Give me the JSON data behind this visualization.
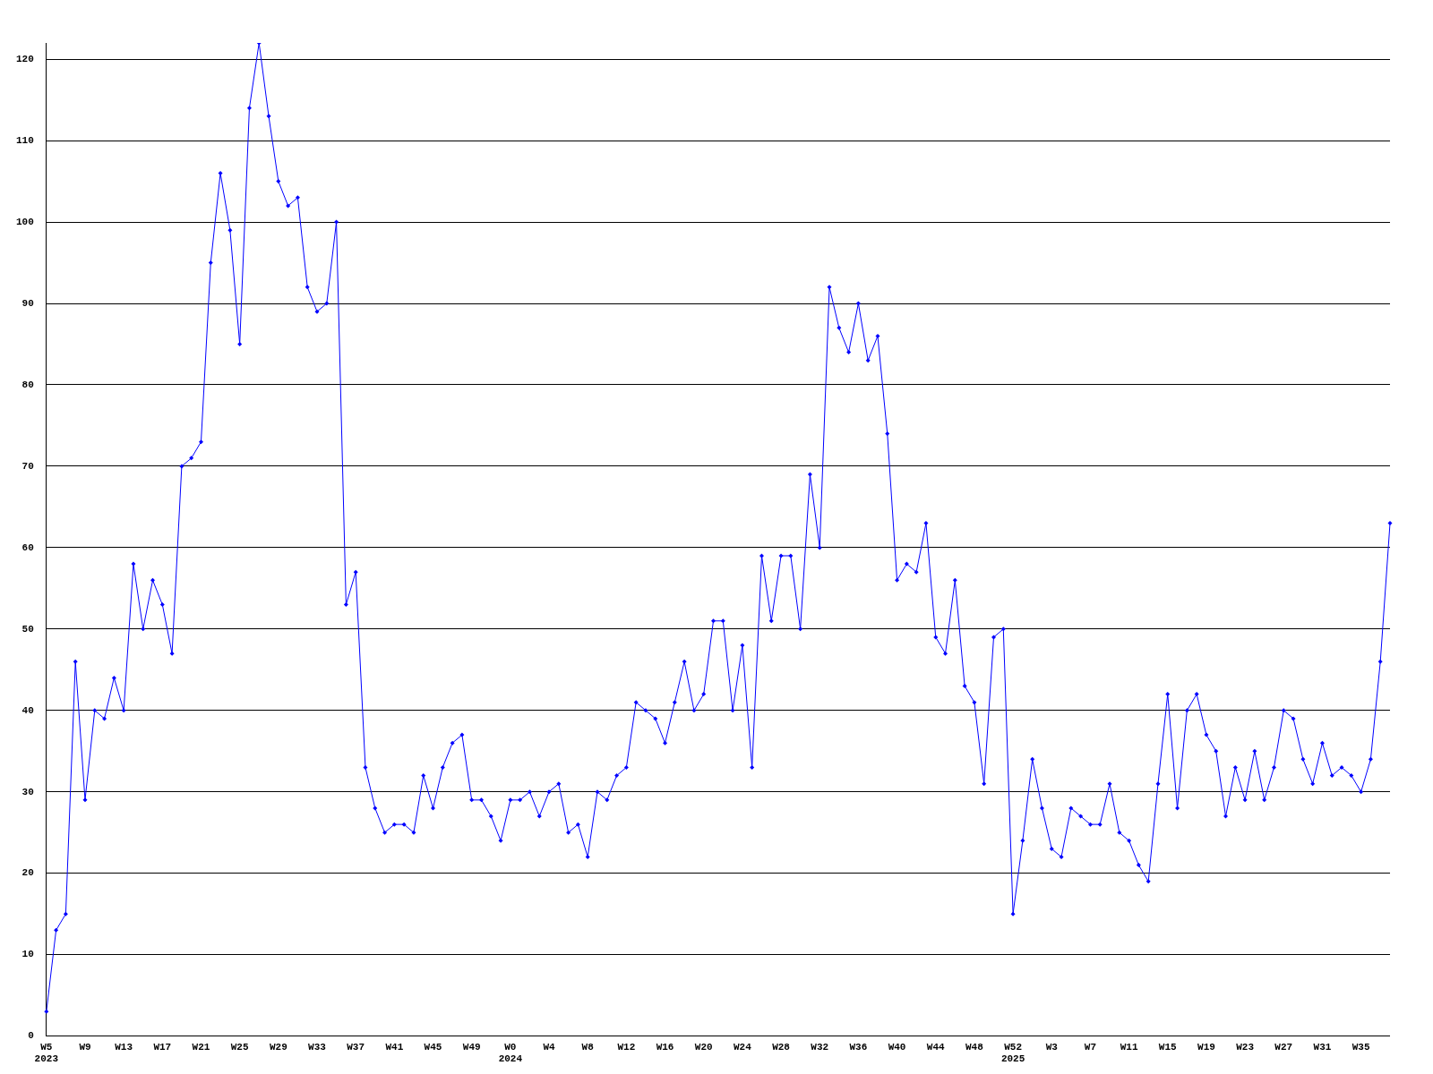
{
  "chart_data": {
    "type": "line",
    "categories": [
      "W5\n2023",
      null,
      null,
      null,
      "W9",
      null,
      null,
      null,
      "W13",
      null,
      null,
      null,
      "W17",
      null,
      null,
      null,
      "W21",
      null,
      null,
      null,
      "W25",
      null,
      null,
      null,
      "W29",
      null,
      null,
      null,
      "W33",
      null,
      null,
      null,
      "W37",
      null,
      null,
      null,
      "W41",
      null,
      null,
      null,
      "W45",
      null,
      null,
      null,
      "W49",
      null,
      null,
      null,
      "W0\n2024",
      null,
      null,
      null,
      "W4",
      null,
      null,
      null,
      "W8",
      null,
      null,
      null,
      "W12",
      null,
      null,
      null,
      "W16",
      null,
      null,
      null,
      "W20",
      null,
      null,
      null,
      "W24",
      null,
      null,
      null,
      "W28",
      null,
      null,
      null,
      "W32",
      null,
      null,
      null,
      "W36",
      null,
      null,
      null,
      "W40",
      null,
      null,
      null,
      "W44",
      null,
      null,
      null,
      "W48",
      null,
      null,
      null,
      "W52\n2025",
      null,
      null,
      null,
      "W3",
      null,
      null,
      null,
      "W7",
      null,
      null,
      null,
      "W11",
      null,
      null,
      null,
      "W15",
      null,
      null,
      null,
      "W19",
      null,
      null,
      null,
      "W23",
      null,
      null,
      null,
      "W27",
      null,
      null,
      null,
      "W31",
      null,
      null,
      null,
      "W35",
      null,
      null,
      null
    ],
    "series": [
      {
        "color": "#0000ff",
        "values": [
          3,
          13,
          15,
          46,
          29,
          40,
          39,
          44,
          40,
          58,
          50,
          56,
          53,
          47,
          70,
          71,
          73,
          95,
          106,
          99,
          85,
          114,
          122,
          113,
          105,
          102,
          103,
          92,
          89,
          90,
          100,
          53,
          57,
          33,
          28,
          25,
          26,
          26,
          25,
          32,
          28,
          33,
          36,
          37,
          29,
          29,
          27,
          24,
          29,
          29,
          30,
          27,
          30,
          31,
          25,
          26,
          22,
          30,
          29,
          32,
          33,
          41,
          40,
          39,
          36,
          41,
          46,
          40,
          42,
          51,
          51,
          40,
          48,
          33,
          59,
          51,
          59,
          59,
          50,
          69,
          60,
          92,
          87,
          84,
          90,
          83,
          86,
          74,
          56,
          58,
          57,
          63,
          49,
          47,
          56,
          43,
          41,
          31,
          49,
          50,
          15,
          24,
          34,
          28,
          23,
          22,
          28,
          27,
          26,
          26,
          31,
          25,
          24,
          21,
          19,
          31,
          42,
          28,
          40,
          42,
          37,
          35,
          27,
          33,
          29,
          35,
          29,
          33,
          40,
          39,
          34,
          31,
          36,
          32,
          33,
          32,
          30,
          34,
          46,
          63
        ]
      }
    ],
    "ylim": [
      0,
      122
    ],
    "yticks": [
      0,
      10,
      20,
      30,
      40,
      50,
      60,
      70,
      80,
      90,
      100,
      110,
      120
    ],
    "grid": "y",
    "marker": "diamond",
    "line_style": "solid",
    "legend": false
  }
}
